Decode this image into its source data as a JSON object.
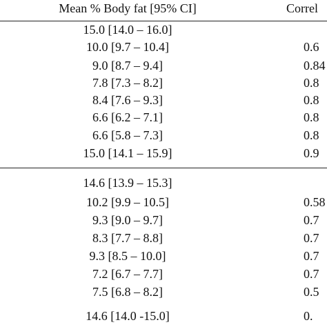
{
  "table": {
    "header": [
      "Mean % Body fat [95% CI]",
      "Correl"
    ],
    "groups": [
      [
        [
          "15.0 [14.0 – 16.0]",
          null
        ],
        [
          "10.0 [9.7 – 10.4]",
          "0.6"
        ],
        [
          "9.0 [8.7 – 9.4]",
          "0.84"
        ],
        [
          "7.8 [7.3 – 8.2]",
          "0.8"
        ],
        [
          "8.4 [7.6 – 9.3]",
          "0.8"
        ],
        [
          "6.6 [6.2 – 7.1]",
          "0.8"
        ],
        [
          "6.6 [5.8 – 7.3]",
          "0.8"
        ],
        [
          "15.0 [14.1 – 15.9]",
          "0.9"
        ]
      ],
      [
        [
          "14.6 [13.9 – 15.3]",
          null
        ],
        [
          "10.2 [9.9 – 10.5]",
          "0.58"
        ],
        [
          "9.3 [9.0 – 9.7]",
          "0.7"
        ],
        [
          "8.3 [7.7 – 8.8]",
          "0.7"
        ],
        [
          "9.3 [8.5 – 10.0]",
          "0.7"
        ],
        [
          "7.2 [6.7 – 7.7]",
          "0.7"
        ],
        [
          "7.5 [6.8 – 8.2]",
          "0.5"
        ],
        [
          "14.6 [14.0 -15.0]",
          "0."
        ]
      ]
    ]
  }
}
